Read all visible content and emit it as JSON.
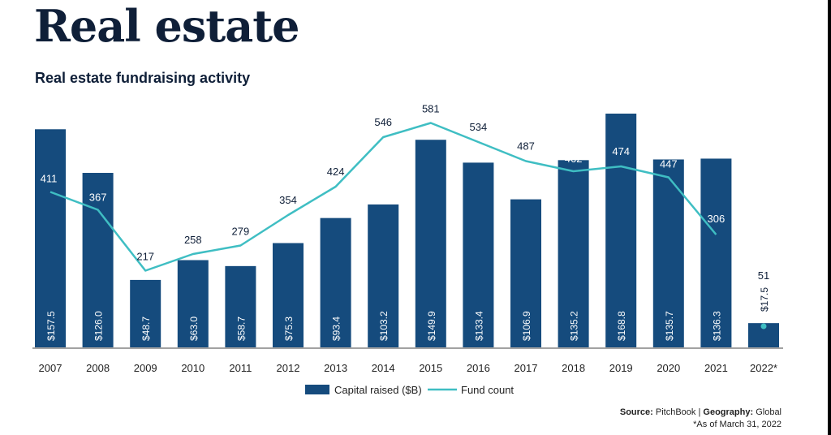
{
  "page": {
    "heading": "Real estate",
    "subtitle": "Real estate fundraising activity"
  },
  "colors": {
    "bar": "#154b7d",
    "line": "#3fbec3",
    "text": "#0f1f38"
  },
  "chart_data": {
    "type": "bar",
    "title": "Real estate fundraising activity",
    "categories": [
      "2007",
      "2008",
      "2009",
      "2010",
      "2011",
      "2012",
      "2013",
      "2014",
      "2015",
      "2016",
      "2017",
      "2018",
      "2019",
      "2020",
      "2021",
      "2022*"
    ],
    "series": [
      {
        "name": "Capital raised ($B)",
        "type": "bar",
        "values": [
          157.5,
          126.0,
          48.7,
          63.0,
          58.7,
          75.3,
          93.4,
          103.2,
          149.9,
          133.4,
          106.9,
          135.2,
          168.8,
          135.7,
          136.3,
          17.5
        ],
        "labels": [
          "$157.5",
          "$126.0",
          "$48.7",
          "$63.0",
          "$58.7",
          "$75.3",
          "$93.4",
          "$103.2",
          "$149.9",
          "$133.4",
          "$106.9",
          "$135.2",
          "$168.8",
          "$135.7",
          "$136.3",
          "$17.5"
        ]
      },
      {
        "name": "Fund count",
        "type": "line",
        "values": [
          411,
          367,
          217,
          258,
          279,
          354,
          424,
          546,
          581,
          534,
          487,
          462,
          474,
          447,
          306,
          51
        ],
        "labels": [
          "411",
          "367",
          "217",
          "258",
          "279",
          "354",
          "424",
          "546",
          "581",
          "534",
          "487",
          "462",
          "474",
          "447",
          "306",
          "51"
        ]
      }
    ],
    "legend": [
      "Capital raised ($B)",
      "Fund count"
    ],
    "legend_position": "bottom"
  },
  "footer": {
    "source_label": "Source:",
    "source_value": "PitchBook",
    "separator": "|",
    "geo_label": "Geography:",
    "geo_value": "Global",
    "footnote": "*As of March 31, 2022"
  }
}
